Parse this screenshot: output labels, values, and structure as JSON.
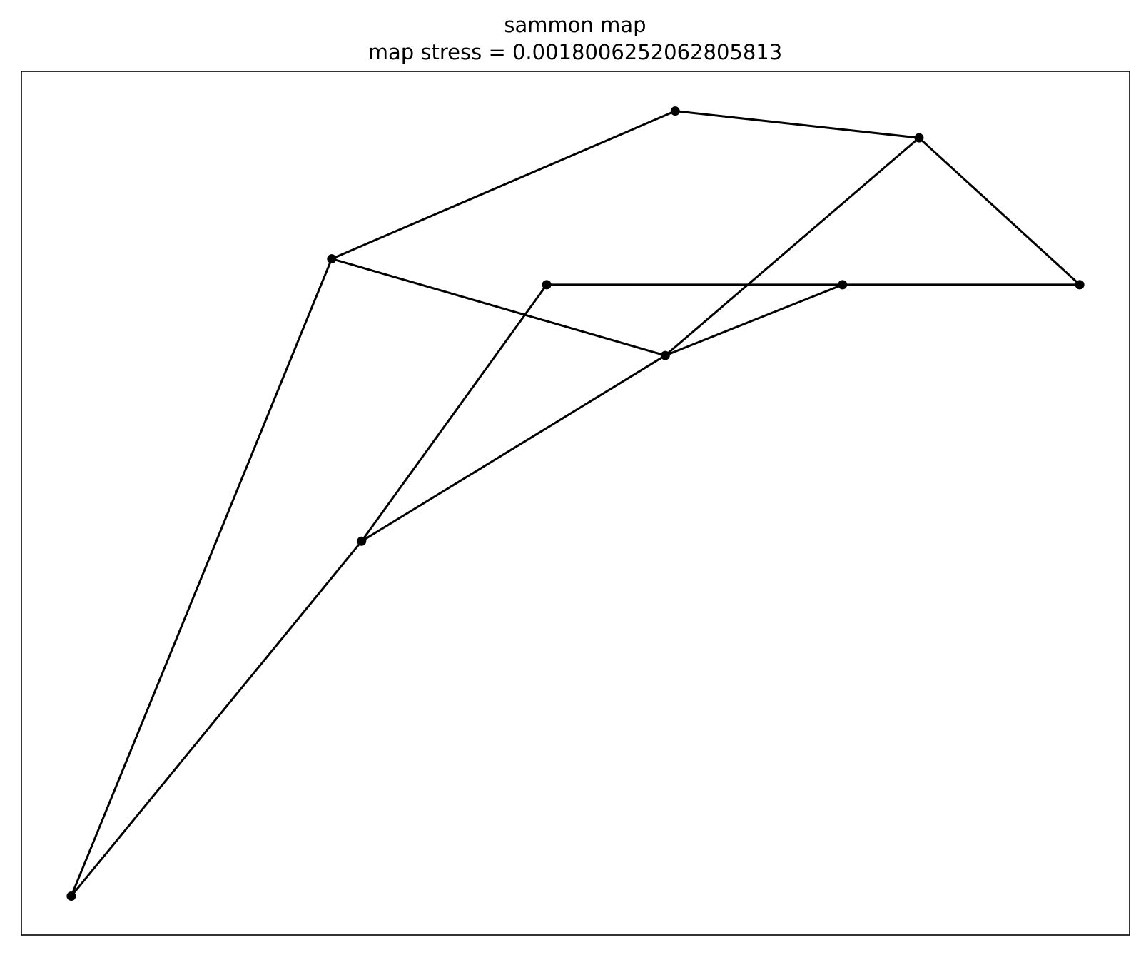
{
  "chart_data": {
    "type": "scatter",
    "title": "sammon map",
    "subtitle": "map stress = 0.0018006252062805813",
    "axes_visible": false,
    "grid": false,
    "line_color": "#000000",
    "marker_color": "#000000",
    "xlim": [
      0,
      1
    ],
    "ylim": [
      0,
      1
    ],
    "points": [
      {
        "x": 0.045,
        "y": 0.045
      },
      {
        "x": 0.307,
        "y": 0.456
      },
      {
        "x": 0.28,
        "y": 0.783
      },
      {
        "x": 0.59,
        "y": 0.954
      },
      {
        "x": 0.81,
        "y": 0.923
      },
      {
        "x": 0.955,
        "y": 0.753
      },
      {
        "x": 0.741,
        "y": 0.753
      },
      {
        "x": 0.581,
        "y": 0.671
      },
      {
        "x": 0.474,
        "y": 0.753
      }
    ],
    "edges": [
      [
        0,
        1
      ],
      [
        0,
        2
      ],
      [
        1,
        8
      ],
      [
        1,
        7
      ],
      [
        2,
        3
      ],
      [
        2,
        7
      ],
      [
        3,
        4
      ],
      [
        4,
        5
      ],
      [
        4,
        7
      ],
      [
        5,
        6
      ],
      [
        6,
        8
      ],
      [
        6,
        7
      ]
    ]
  }
}
